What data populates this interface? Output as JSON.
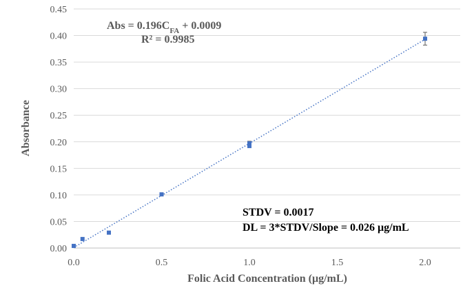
{
  "chart_data": {
    "type": "scatter",
    "xlabel": "Folic Acid Concentration (μg/mL)",
    "ylabel": "Absorbance",
    "xlim": [
      0,
      2.2
    ],
    "ylim": [
      0,
      0.45
    ],
    "xticks": [
      "0.0",
      "0.5",
      "1.0",
      "1.5",
      "2.0"
    ],
    "xtick_values": [
      0,
      0.5,
      1.0,
      1.5,
      2.0
    ],
    "yticks": [
      "0.00",
      "0.05",
      "0.10",
      "0.15",
      "0.20",
      "0.25",
      "0.30",
      "0.35",
      "0.40",
      "0.45"
    ],
    "ytick_values": [
      0,
      0.05,
      0.1,
      0.15,
      0.2,
      0.25,
      0.3,
      0.35,
      0.4,
      0.45
    ],
    "grid": "horizontal",
    "legend": "none",
    "series": [
      {
        "points": [
          {
            "x": 0.0,
            "y": 0.004,
            "err": 0.0
          },
          {
            "x": 0.05,
            "y": 0.017,
            "err": 0.0
          },
          {
            "x": 0.2,
            "y": 0.029,
            "err": 0.0
          },
          {
            "x": 0.5,
            "y": 0.101,
            "err": 0.0
          },
          {
            "x": 1.0,
            "y": 0.192,
            "err": 0.002
          },
          {
            "x": 1.0,
            "y": 0.197,
            "err": 0.004
          },
          {
            "x": 2.0,
            "y": 0.394,
            "err": 0.012
          }
        ],
        "marker_color": "#4472C4"
      }
    ],
    "trendline": {
      "slope": 0.196,
      "intercept": 0.0009,
      "x_range": [
        0,
        2.0
      ],
      "style": "dotted",
      "color": "#4472C4"
    },
    "equation": {
      "prefix": "Abs = 0.196C",
      "subscript": "FA",
      "suffix": " + 0.0009",
      "r2": "R² = 0.9985"
    },
    "notes": {
      "stdv": "STDV = 0.0017",
      "dl": "DL = 3*STDV/Slope = 0.026 μg/mL"
    },
    "colors": {
      "grid": "#D9D9D9",
      "text": "#595959",
      "marker": "#4472C4",
      "error_bar": "#595959"
    }
  }
}
